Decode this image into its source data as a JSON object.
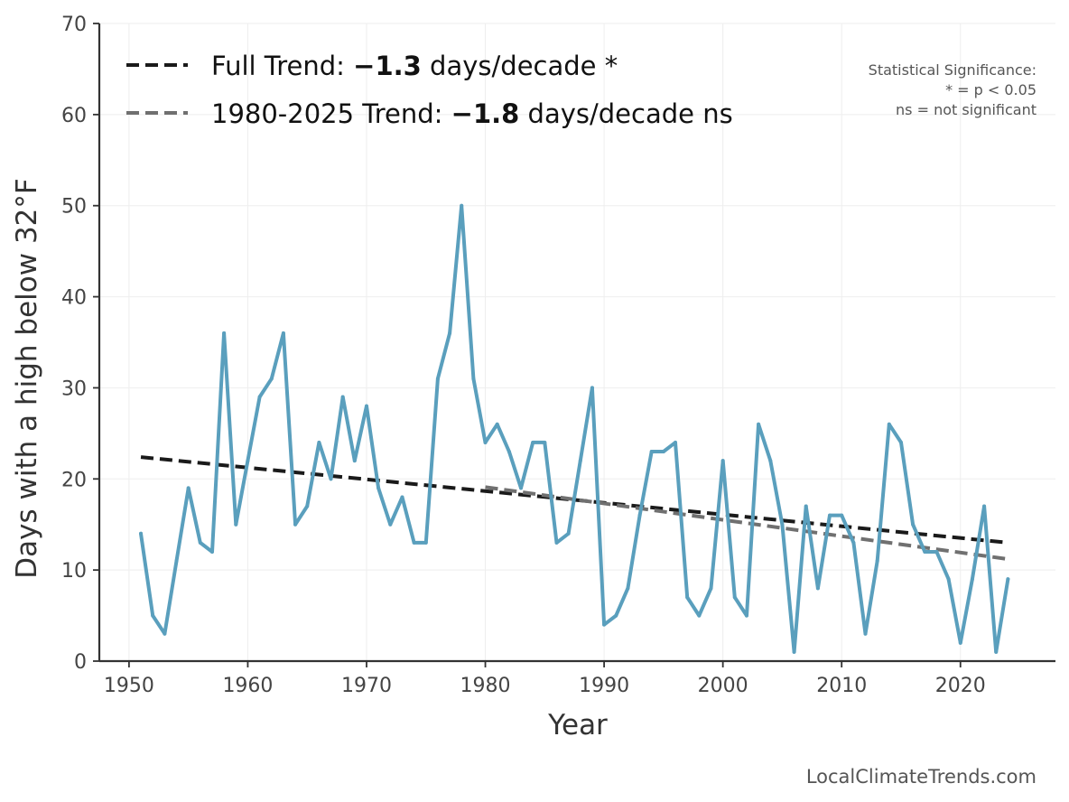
{
  "chart_data": {
    "type": "line",
    "xlabel": "Year",
    "ylabel": "Days with a high below 32°F",
    "xlim": [
      1947.5,
      2028
    ],
    "ylim": [
      0,
      70
    ],
    "xticks": [
      1950,
      1960,
      1970,
      1980,
      1990,
      2000,
      2010,
      2020
    ],
    "yticks": [
      0,
      10,
      20,
      30,
      40,
      50,
      60,
      70
    ],
    "grid": true,
    "series": [
      {
        "name": "Days with a high below 32°F",
        "color": "#5a9fbd",
        "x": [
          1951,
          1952,
          1953,
          1954,
          1955,
          1956,
          1957,
          1958,
          1959,
          1960,
          1961,
          1962,
          1963,
          1964,
          1965,
          1966,
          1967,
          1968,
          1969,
          1970,
          1971,
          1972,
          1973,
          1974,
          1975,
          1976,
          1977,
          1978,
          1979,
          1980,
          1981,
          1982,
          1983,
          1984,
          1985,
          1986,
          1987,
          1988,
          1989,
          1990,
          1991,
          1992,
          1993,
          1994,
          1995,
          1996,
          1997,
          1998,
          1999,
          2000,
          2001,
          2002,
          2003,
          2004,
          2005,
          2006,
          2007,
          2008,
          2009,
          2010,
          2011,
          2012,
          2013,
          2014,
          2015,
          2016,
          2017,
          2018,
          2019,
          2020,
          2021,
          2022,
          2023,
          2024
        ],
        "values": [
          14,
          5,
          3,
          11,
          19,
          13,
          12,
          36,
          15,
          22,
          29,
          31,
          36,
          15,
          17,
          24,
          20,
          29,
          22,
          28,
          19,
          15,
          18,
          13,
          13,
          31,
          36,
          50,
          31,
          24,
          26,
          23,
          19,
          24,
          24,
          13,
          14,
          22,
          30,
          4,
          5,
          8,
          16,
          23,
          23,
          24,
          7,
          5,
          8,
          22,
          7,
          5,
          26,
          22,
          15,
          1,
          17,
          8,
          16,
          16,
          13,
          3,
          11,
          26,
          24,
          15,
          12,
          12,
          9,
          2,
          9,
          17,
          1,
          9
        ]
      }
    ],
    "trends": [
      {
        "name": "Full Trend",
        "legend_prefix": "Full Trend: ",
        "legend_value": "−1.3",
        "legend_suffix": " days/decade *",
        "color": "#1a1a1a",
        "x": [
          1951,
          2024
        ],
        "y": [
          22.4,
          13.0
        ]
      },
      {
        "name": "1980-2025 Trend",
        "legend_prefix": "1980-2025 Trend: ",
        "legend_value": "−1.8",
        "legend_suffix": " days/decade ns",
        "color": "#707070",
        "x": [
          1980,
          2024
        ],
        "y": [
          19.1,
          11.2
        ]
      }
    ],
    "annotation": {
      "lines": [
        "Statistical Significance:",
        "* = p < 0.05",
        "ns = not significant"
      ]
    },
    "credit": "LocalClimateTrends.com"
  }
}
